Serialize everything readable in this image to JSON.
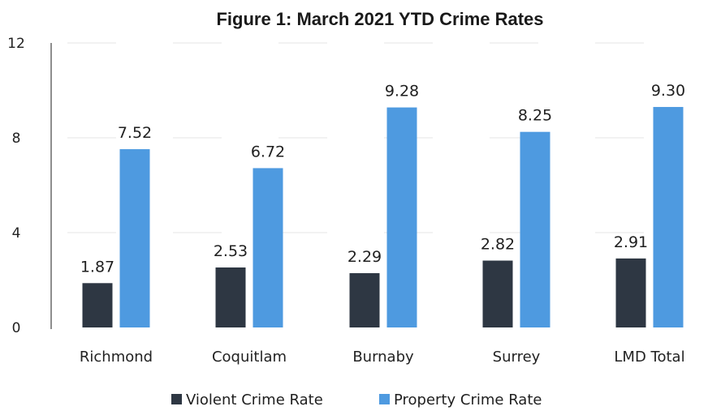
{
  "chart_data": {
    "type": "bar",
    "title": "Figure 1: March 2021 YTD Crime Rates",
    "xlabel": "",
    "ylabel": "",
    "ylim": [
      0,
      12
    ],
    "yticks": [
      0,
      4,
      8,
      12
    ],
    "grid": true,
    "legend_position": "bottom",
    "categories": [
      "Richmond",
      "Coquitlam",
      "Burnaby",
      "Surrey",
      "LMD Total"
    ],
    "series": [
      {
        "name": "Violent Crime Rate",
        "color": "#2e3743",
        "values": [
          1.87,
          2.53,
          2.29,
          2.82,
          2.91
        ],
        "labels": [
          "1.87",
          "2.53",
          "2.29",
          "2.82",
          "2.91"
        ]
      },
      {
        "name": "Property Crime Rate",
        "color": "#4e9ae0",
        "values": [
          7.52,
          6.72,
          9.28,
          8.25,
          9.3
        ],
        "labels": [
          "7.52",
          "6.72",
          "9.28",
          "8.25",
          "9.30"
        ]
      }
    ]
  }
}
